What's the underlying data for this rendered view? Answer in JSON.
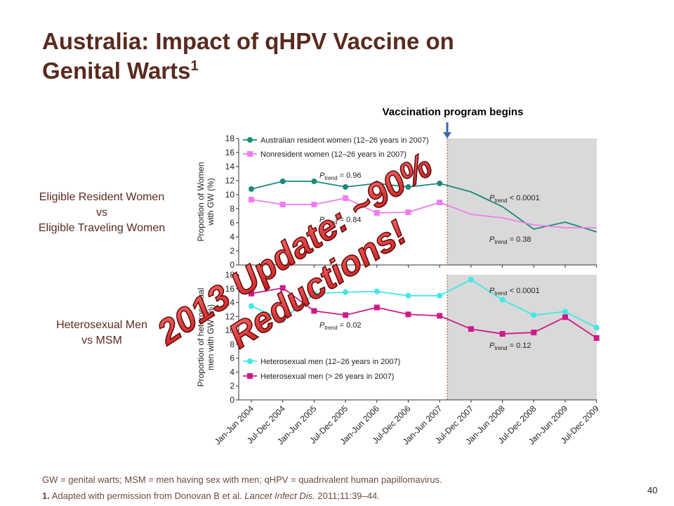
{
  "slide": {
    "title_line1": "Australia: Impact of qHPV Vaccine on",
    "title_line2": "Genital Warts",
    "title_sup": "1",
    "label_women_1": "Eligible Resident Women",
    "label_women_2": "vs",
    "label_women_3": "Eligible Traveling Women",
    "label_men_1": "Heterosexual Men",
    "label_men_2": "vs MSM",
    "vaccination_label": "Vaccination program begins",
    "overlay_line1": "2013 Update: ~90%",
    "overlay_line2": "Reductions!",
    "footnote1": "GW = genital warts; MSM = men having sex with men; qHPV = quadrivalent human papillomavirus.",
    "footnote2_num": "1.",
    "footnote2_pre": " Adapted with permission from Donovan B et al. ",
    "footnote2_journal": "Lancet Infect Dis.",
    "footnote2_post": " 2011;11:39–44.",
    "page_number": "40"
  },
  "chart_data": [
    {
      "type": "line",
      "ylabel": "Proportion of Women with GW (%)",
      "ylim": [
        0,
        18
      ],
      "yticks": [
        0,
        2,
        4,
        6,
        8,
        10,
        12,
        14,
        16,
        18
      ],
      "x": [
        "Jan-Jun 2004",
        "Jul-Dec 2004",
        "Jan-Jun 2005",
        "Jul-Dec 2005",
        "Jan-Jun 2006",
        "Jul-Dec 2006",
        "Jan-Jun 2007",
        "Jul-Dec 2007",
        "Jan-Jun 2008",
        "Jul-Dec 2008",
        "Jan-Jun 2009",
        "Jul-Dec 2009"
      ],
      "shaded_from": "Jul-Dec 2007",
      "series": [
        {
          "name": "Australian resident women (12–26 years in 2007)",
          "color": "#1a8a7a",
          "values": [
            10.8,
            11.9,
            11.9,
            11.1,
            11.6,
            11.1,
            11.6,
            10.4,
            8.3,
            5.1,
            6.1,
            4.7
          ],
          "markers": 7
        },
        {
          "name": "Nonresident women (12–26 years in 2007)",
          "color": "#f07cf0",
          "values": [
            9.3,
            8.6,
            8.6,
            9.5,
            7.4,
            7.5,
            8.9,
            7.2,
            6.7,
            5.7,
            5.3,
            5.3
          ],
          "markers": 7
        }
      ],
      "annotations": [
        {
          "text": "= 0.96",
          "sub": "trend",
          "pre": "P"
        },
        {
          "text": "= 0.84",
          "sub": "trend",
          "pre": "P"
        },
        {
          "text": "< 0.0001",
          "sub": "trend",
          "pre": "P"
        },
        {
          "text": "= 0.38",
          "sub": "trend",
          "pre": "P"
        }
      ]
    },
    {
      "type": "line",
      "ylabel": "Proportion of heterosexual men with GW (%)",
      "ylim": [
        0,
        18
      ],
      "yticks": [
        0,
        2,
        4,
        6,
        8,
        10,
        12,
        14,
        16,
        18
      ],
      "x": [
        "Jan-Jun 2004",
        "Jul-Dec 2004",
        "Jan-Jun 2005",
        "Jul-Dec 2005",
        "Jan-Jun 2006",
        "Jul-Dec 2006",
        "Jan-Jun 2007",
        "Jul-Dec 2007",
        "Jan-Jun 2008",
        "Jul-Dec 2008",
        "Jan-Jun 2009",
        "Jul-Dec 2009"
      ],
      "shaded_from": "Jul-Dec 2007",
      "series": [
        {
          "name": "Heterosexual men (12–26 years in 2007)",
          "color": "#40e8e8",
          "values": [
            13.5,
            11.5,
            15.3,
            15.5,
            15.6,
            15.0,
            15.0,
            17.3,
            14.4,
            12.2,
            12.7,
            10.4
          ],
          "markers": 12
        },
        {
          "name": "Heterosexual men (> 26 years in 2007)",
          "color": "#cc1a8a",
          "values": [
            15.3,
            16.1,
            12.8,
            12.2,
            13.3,
            12.3,
            12.1,
            10.2,
            9.5,
            9.7,
            11.9,
            8.9
          ],
          "markers": 12
        }
      ],
      "annotations": [
        {
          "text": "= 0.02",
          "sub": "trend",
          "pre": "P"
        },
        {
          "text": "< 0.0001",
          "sub": "trend",
          "pre": "P"
        },
        {
          "text": "= 0.12",
          "sub": "trend",
          "pre": "P"
        }
      ]
    }
  ]
}
